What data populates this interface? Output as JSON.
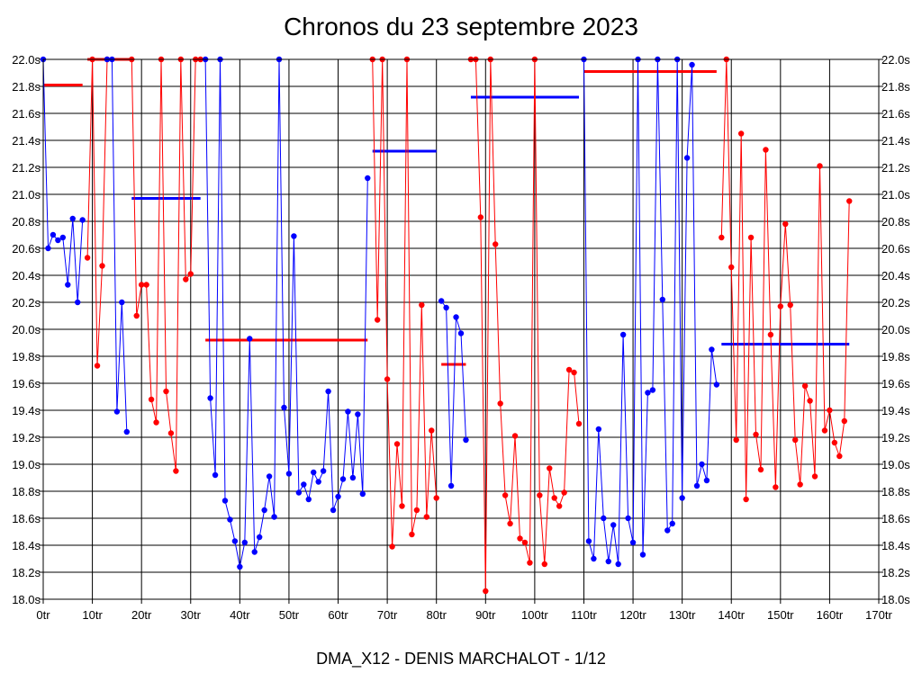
{
  "title": "Chronos du 23 septembre 2023",
  "caption": "DMA_X12 - DENIS MARCHALOT - 1/12",
  "colors": {
    "red": "#ff0000",
    "blue": "#0000ff",
    "grid": "#000000"
  },
  "chart_data": {
    "type": "line",
    "title": "Chronos du 23 septembre 2023",
    "xlabel": "",
    "ylabel": "",
    "xlim": [
      0,
      170
    ],
    "ylim": [
      18.0,
      22.0
    ],
    "grid": true,
    "x_tick_labels": [
      "0tr",
      "10tr",
      "20tr",
      "30tr",
      "40tr",
      "50tr",
      "60tr",
      "70tr",
      "80tr",
      "90tr",
      "100tr",
      "110tr",
      "120tr",
      "130tr",
      "140tr",
      "150tr",
      "160tr",
      "170tr"
    ],
    "y_tick_labels": [
      "18.0s",
      "18.2s",
      "18.4s",
      "18.6s",
      "18.8s",
      "19.0s",
      "19.2s",
      "19.4s",
      "19.6s",
      "19.8s",
      "20.0s",
      "20.2s",
      "20.4s",
      "20.6s",
      "20.8s",
      "21.0s",
      "21.2s",
      "21.4s",
      "21.6s",
      "21.8s",
      "22.0s"
    ],
    "series": [
      {
        "color": "#0000ff",
        "points": [
          [
            0,
            22.0
          ],
          [
            1,
            20.6
          ],
          [
            2,
            20.7
          ],
          [
            3,
            20.66
          ],
          [
            4,
            20.68
          ],
          [
            5,
            20.33
          ],
          [
            6,
            20.82
          ],
          [
            7,
            20.2
          ],
          [
            8,
            20.81
          ]
        ]
      },
      {
        "color": "#ff0000",
        "points": [
          [
            9,
            20.53
          ],
          [
            10,
            22.0
          ],
          [
            11,
            19.73
          ],
          [
            12,
            20.47
          ],
          [
            13,
            22.0
          ],
          [
            18,
            22.0
          ],
          [
            19,
            20.1
          ],
          [
            20,
            20.33
          ],
          [
            21,
            20.33
          ],
          [
            22,
            19.48
          ],
          [
            23,
            19.31
          ],
          [
            24,
            22.0
          ],
          [
            25,
            19.54
          ],
          [
            26,
            19.23
          ],
          [
            27,
            18.95
          ],
          [
            28,
            22.0
          ],
          [
            29,
            20.37
          ],
          [
            30,
            20.41
          ],
          [
            31,
            22.0
          ],
          [
            32,
            22.0
          ]
        ]
      },
      {
        "color": "#0000ff",
        "points": [
          [
            13,
            22.0
          ],
          [
            14,
            22.0
          ],
          [
            15,
            19.39
          ],
          [
            16,
            20.2
          ],
          [
            17,
            19.24
          ]
        ]
      },
      {
        "color": "#0000ff",
        "points": [
          [
            33,
            22.0
          ],
          [
            34,
            19.49
          ],
          [
            35,
            18.92
          ],
          [
            36,
            22.0
          ],
          [
            37,
            18.73
          ],
          [
            38,
            18.59
          ],
          [
            39,
            18.43
          ],
          [
            40,
            18.24
          ],
          [
            41,
            18.42
          ],
          [
            42,
            19.93
          ],
          [
            43,
            18.35
          ],
          [
            44,
            18.46
          ],
          [
            45,
            18.66
          ],
          [
            46,
            18.91
          ],
          [
            47,
            18.61
          ],
          [
            48,
            22.0
          ],
          [
            49,
            19.42
          ],
          [
            50,
            18.93
          ],
          [
            51,
            20.69
          ],
          [
            52,
            18.79
          ],
          [
            53,
            18.85
          ],
          [
            54,
            18.74
          ],
          [
            55,
            18.94
          ],
          [
            56,
            18.87
          ],
          [
            57,
            18.95
          ],
          [
            58,
            19.54
          ],
          [
            59,
            18.66
          ],
          [
            60,
            18.76
          ],
          [
            61,
            18.89
          ],
          [
            62,
            19.39
          ],
          [
            63,
            18.9
          ],
          [
            64,
            19.37
          ],
          [
            65,
            18.78
          ],
          [
            66,
            21.12
          ]
        ]
      },
      {
        "color": "#ff0000",
        "points": [
          [
            67,
            22.0
          ],
          [
            68,
            20.07
          ],
          [
            69,
            22.0
          ],
          [
            70,
            19.63
          ],
          [
            71,
            18.39
          ],
          [
            72,
            19.15
          ],
          [
            73,
            18.69
          ],
          [
            74,
            22.0
          ],
          [
            75,
            18.48
          ],
          [
            76,
            18.66
          ],
          [
            77,
            20.18
          ],
          [
            78,
            18.61
          ],
          [
            79,
            19.25
          ],
          [
            80,
            18.75
          ]
        ]
      },
      {
        "color": "#0000ff",
        "points": [
          [
            81,
            20.21
          ],
          [
            82,
            20.16
          ],
          [
            83,
            18.84
          ],
          [
            84,
            20.09
          ],
          [
            85,
            19.97
          ],
          [
            86,
            19.18
          ]
        ]
      },
      {
        "color": "#ff0000",
        "points": [
          [
            87,
            22.0
          ],
          [
            88,
            22.0
          ],
          [
            89,
            20.83
          ],
          [
            90,
            18.06
          ],
          [
            91,
            22.0
          ],
          [
            92,
            20.63
          ],
          [
            93,
            19.45
          ],
          [
            94,
            18.77
          ],
          [
            95,
            18.56
          ],
          [
            96,
            19.21
          ],
          [
            97,
            18.45
          ],
          [
            98,
            18.42
          ],
          [
            99,
            18.27
          ],
          [
            100,
            22.0
          ],
          [
            101,
            18.77
          ],
          [
            102,
            18.26
          ],
          [
            103,
            18.97
          ],
          [
            104,
            18.75
          ],
          [
            105,
            18.69
          ],
          [
            106,
            18.79
          ],
          [
            107,
            19.7
          ],
          [
            108,
            19.68
          ],
          [
            109,
            19.3
          ]
        ]
      },
      {
        "color": "#0000ff",
        "points": [
          [
            110,
            22.0
          ],
          [
            111,
            18.43
          ],
          [
            112,
            18.3
          ],
          [
            113,
            19.26
          ],
          [
            114,
            18.6
          ],
          [
            115,
            18.28
          ],
          [
            116,
            18.55
          ],
          [
            117,
            18.26
          ],
          [
            118,
            19.96
          ],
          [
            119,
            18.6
          ],
          [
            120,
            18.42
          ],
          [
            121,
            22.0
          ],
          [
            122,
            18.33
          ],
          [
            123,
            19.53
          ],
          [
            124,
            19.55
          ],
          [
            125,
            22.0
          ],
          [
            126,
            20.22
          ],
          [
            127,
            18.51
          ],
          [
            128,
            18.56
          ],
          [
            129,
            22.0
          ],
          [
            130,
            18.75
          ],
          [
            131,
            21.27
          ],
          [
            132,
            21.96
          ],
          [
            133,
            18.84
          ],
          [
            134,
            19.0
          ],
          [
            135,
            18.88
          ],
          [
            136,
            19.85
          ],
          [
            137,
            19.59
          ]
        ]
      },
      {
        "color": "#ff0000",
        "points": [
          [
            138,
            20.68
          ],
          [
            139,
            22.0
          ],
          [
            140,
            20.46
          ],
          [
            141,
            19.18
          ],
          [
            142,
            21.45
          ],
          [
            143,
            18.74
          ],
          [
            144,
            20.68
          ],
          [
            145,
            19.22
          ],
          [
            146,
            18.96
          ],
          [
            147,
            21.33
          ],
          [
            148,
            19.96
          ],
          [
            149,
            18.83
          ],
          [
            150,
            20.17
          ],
          [
            151,
            20.78
          ],
          [
            152,
            20.18
          ],
          [
            153,
            19.18
          ],
          [
            154,
            18.85
          ],
          [
            155,
            19.58
          ],
          [
            156,
            19.47
          ],
          [
            157,
            18.91
          ],
          [
            158,
            21.21
          ],
          [
            159,
            19.25
          ],
          [
            160,
            19.4
          ],
          [
            161,
            19.16
          ],
          [
            162,
            19.06
          ],
          [
            163,
            19.32
          ],
          [
            164,
            20.95
          ]
        ]
      }
    ],
    "reference_lines": [
      {
        "color": "#ff0000",
        "x1": 0,
        "x2": 8,
        "y": 21.81
      },
      {
        "color": "#ff0000",
        "x1": 9,
        "x2": 18,
        "y": 22.0
      },
      {
        "color": "#0000ff",
        "x1": 18,
        "x2": 32,
        "y": 20.97
      },
      {
        "color": "#ff0000",
        "x1": 33,
        "x2": 66,
        "y": 19.92
      },
      {
        "color": "#0000ff",
        "x1": 67,
        "x2": 80,
        "y": 21.32
      },
      {
        "color": "#ff0000",
        "x1": 81,
        "x2": 86,
        "y": 19.74
      },
      {
        "color": "#0000ff",
        "x1": 87,
        "x2": 109,
        "y": 21.72
      },
      {
        "color": "#ff0000",
        "x1": 110,
        "x2": 137,
        "y": 21.91
      },
      {
        "color": "#0000ff",
        "x1": 138,
        "x2": 164,
        "y": 19.89
      }
    ]
  }
}
